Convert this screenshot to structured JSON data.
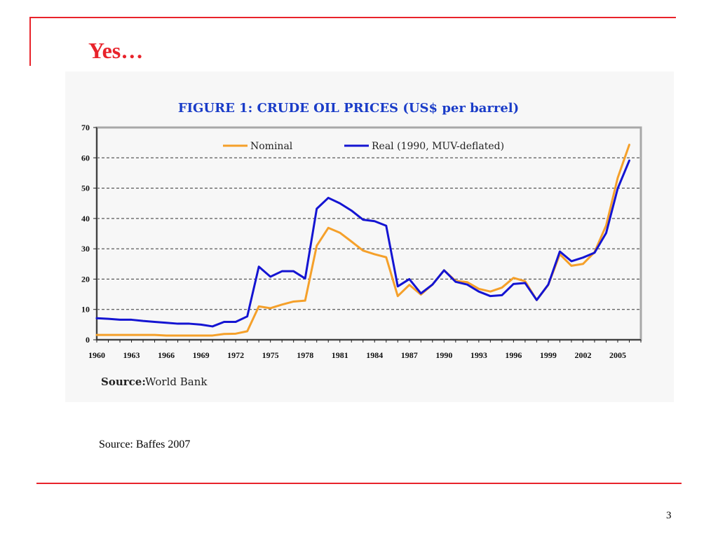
{
  "slide": {
    "title": "Yes…",
    "caption": "Source: Baffes 2007",
    "page_number": "3",
    "accent_color": "#e8232b"
  },
  "figure": {
    "title": "FIGURE 1: CRUDE OIL PRICES (US$ per barrel)",
    "title_color": "#1a3cc8",
    "source_label": "Source:",
    "source_value": "World Bank"
  },
  "chart_data": {
    "type": "line",
    "title": "FIGURE 1: CRUDE OIL PRICES (US$ per barrel)",
    "xlabel": "",
    "ylabel": "",
    "x": [
      1960,
      1961,
      1962,
      1963,
      1964,
      1965,
      1966,
      1967,
      1968,
      1969,
      1970,
      1971,
      1972,
      1973,
      1974,
      1975,
      1976,
      1977,
      1978,
      1979,
      1980,
      1981,
      1982,
      1983,
      1984,
      1985,
      1986,
      1987,
      1988,
      1989,
      1990,
      1991,
      1992,
      1993,
      1994,
      1995,
      1996,
      1997,
      1998,
      1999,
      2000,
      2001,
      2002,
      2003,
      2004,
      2005,
      2006
    ],
    "xlim": [
      1960,
      2007
    ],
    "x_ticks": [
      "1960",
      "1963",
      "1966",
      "1969",
      "1972",
      "1975",
      "1978",
      "1981",
      "1984",
      "1987",
      "1990",
      "1993",
      "1996",
      "1999",
      "2002",
      "2005"
    ],
    "ylim": [
      0,
      70
    ],
    "y_ticks": [
      "0",
      "10",
      "20",
      "30",
      "40",
      "50",
      "60",
      "70"
    ],
    "grid": "horizontal dashed",
    "legend_position": "top",
    "series": [
      {
        "name": "Nominal",
        "color": "#f5a02a",
        "values": [
          1.6,
          1.6,
          1.6,
          1.6,
          1.6,
          1.6,
          1.4,
          1.4,
          1.4,
          1.4,
          1.4,
          1.9,
          2.0,
          2.8,
          11.0,
          10.4,
          11.6,
          12.6,
          12.9,
          31.0,
          36.9,
          35.3,
          32.4,
          29.4,
          28.2,
          27.2,
          14.4,
          18.1,
          14.9,
          18.2,
          22.9,
          19.4,
          19.0,
          16.8,
          15.9,
          17.2,
          20.4,
          19.3,
          13.1,
          18.1,
          28.2,
          24.4,
          25.0,
          28.9,
          37.7,
          53.4,
          64.3
        ]
      },
      {
        "name": "Real (1990, MUV-deflated)",
        "color": "#1414d2",
        "values": [
          7.1,
          6.9,
          6.6,
          6.6,
          6.2,
          5.9,
          5.6,
          5.3,
          5.3,
          5.0,
          4.4,
          5.9,
          5.9,
          7.7,
          24.1,
          20.8,
          22.6,
          22.6,
          20.2,
          43.2,
          46.8,
          45.0,
          42.6,
          39.6,
          39.1,
          37.6,
          17.6,
          20.0,
          15.3,
          18.2,
          22.9,
          19.1,
          18.2,
          15.9,
          14.4,
          14.7,
          18.4,
          18.7,
          13.1,
          18.2,
          29.1,
          25.9,
          27.1,
          28.7,
          35.2,
          49.9,
          59.1
        ]
      }
    ]
  }
}
